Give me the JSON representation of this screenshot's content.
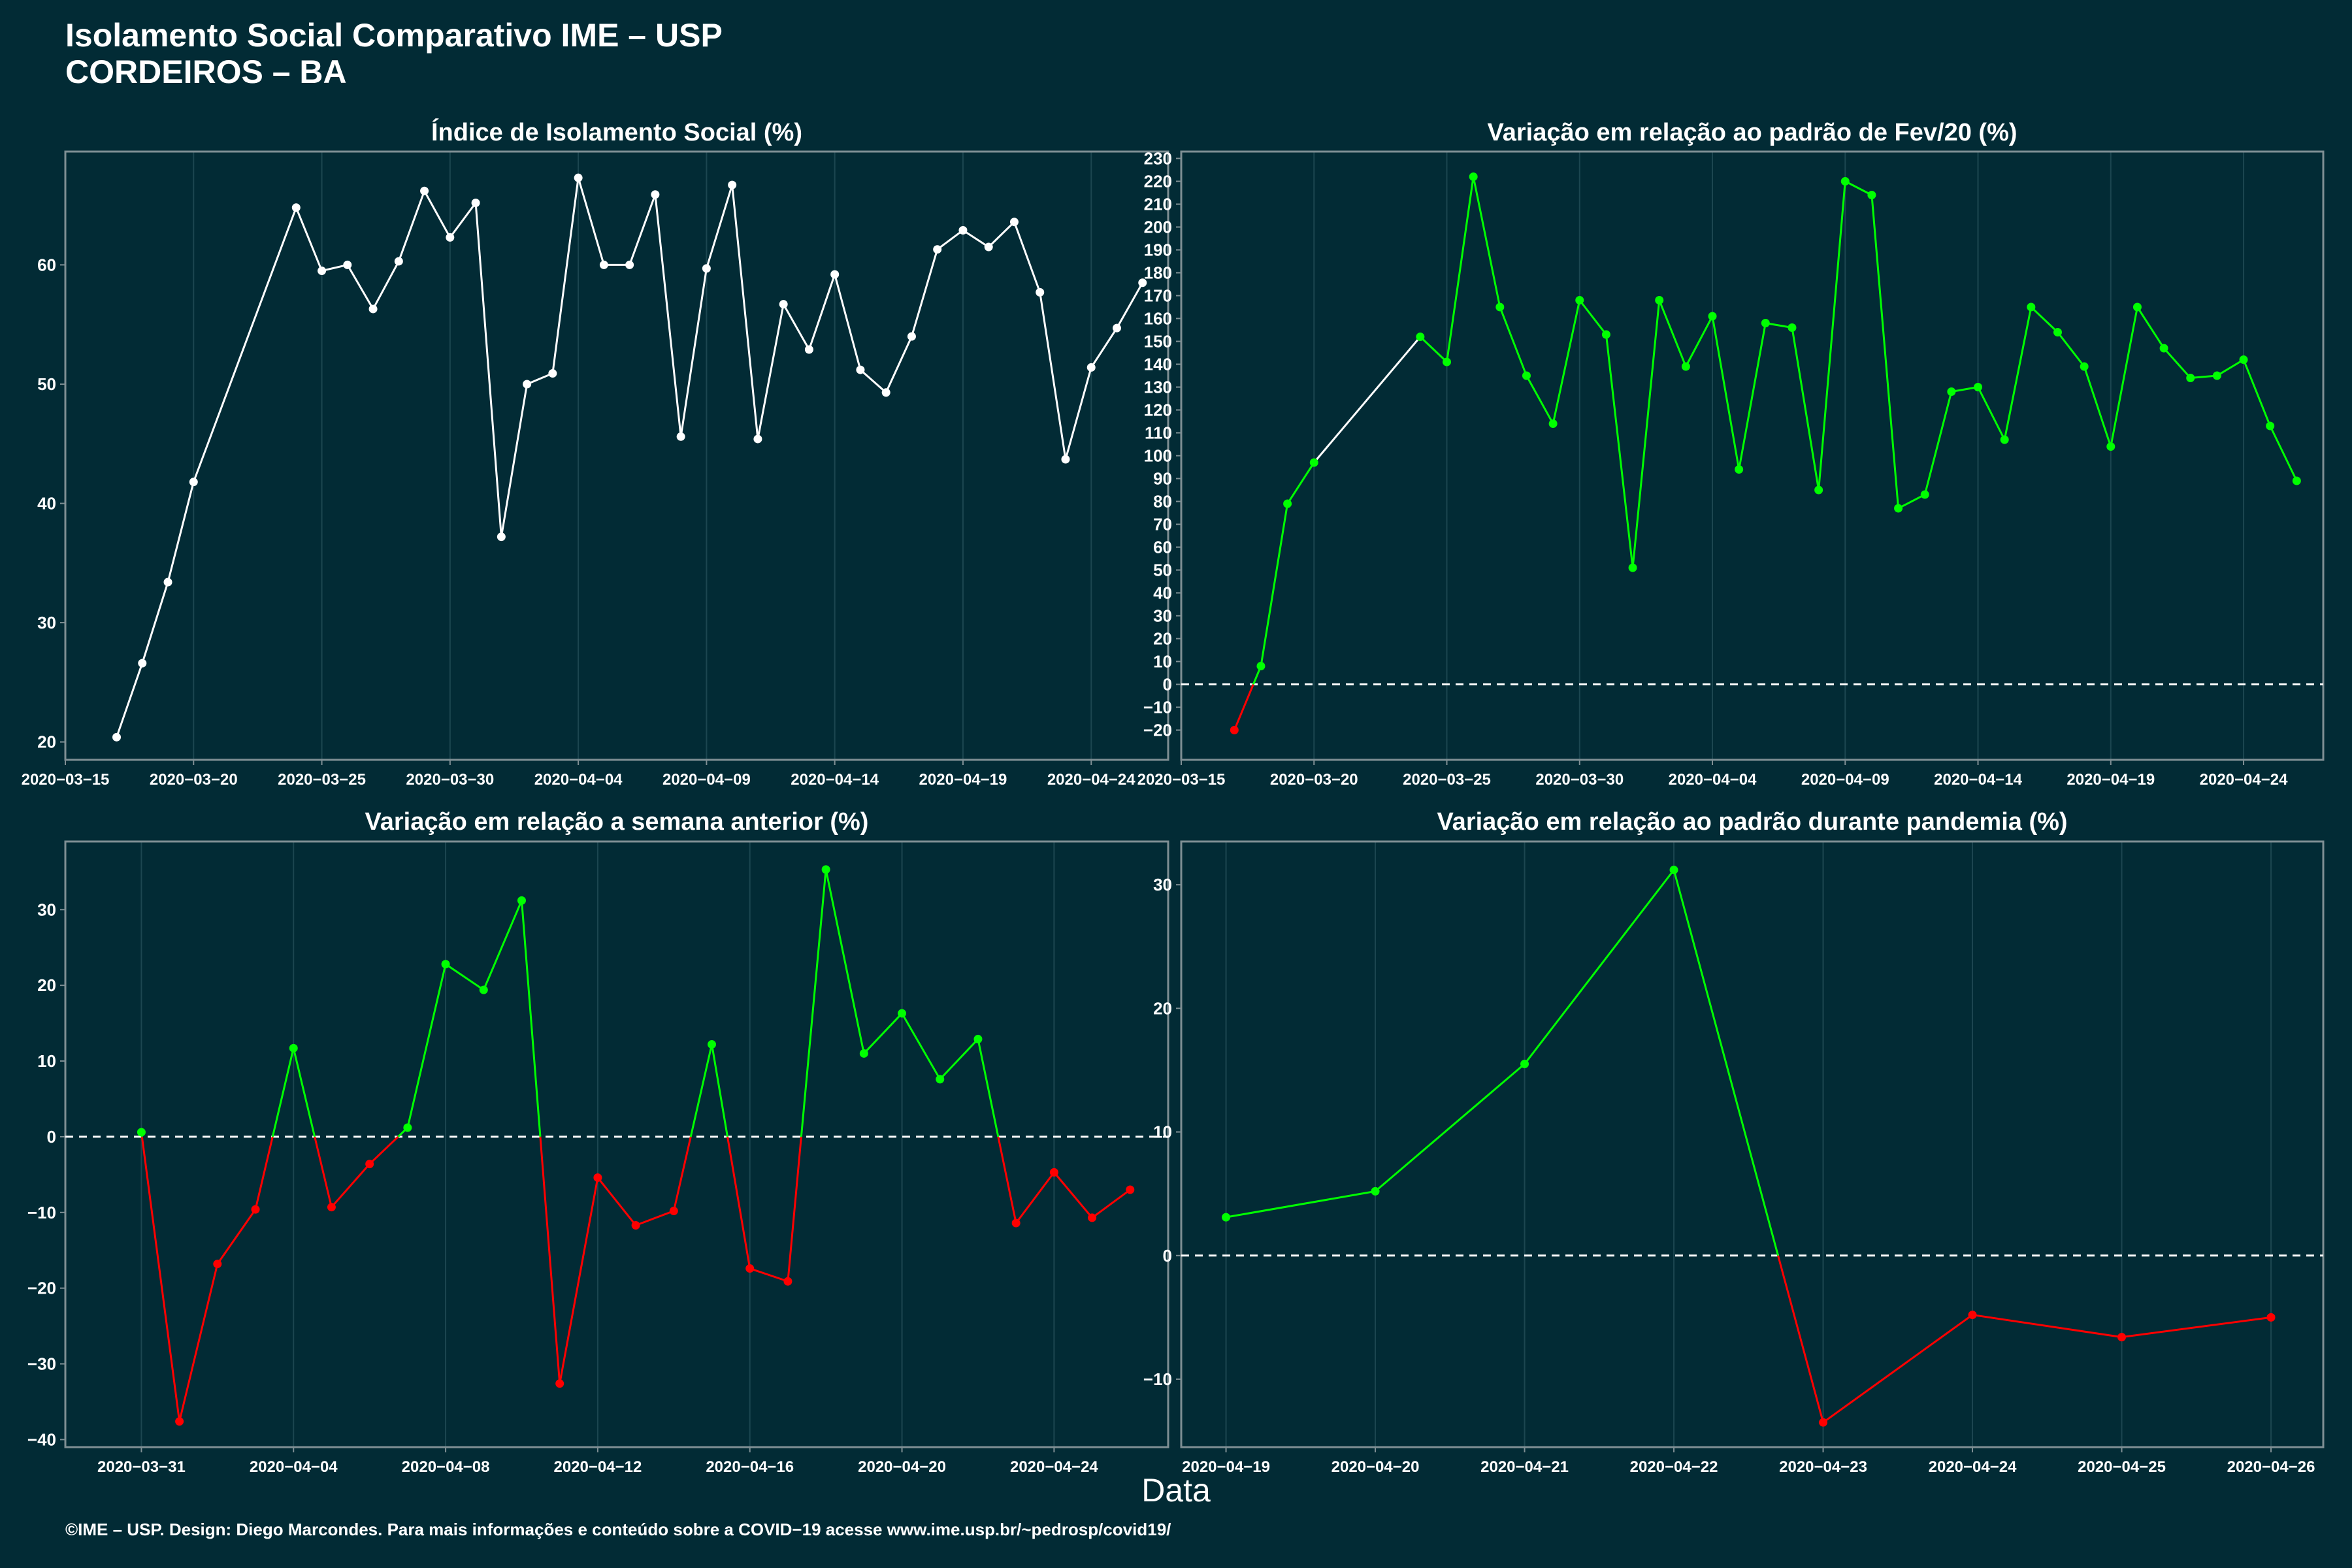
{
  "title_line1": "Isolamento Social Comparativo IME – USP",
  "title_line2": "CORDEIROS – BA",
  "x_axis_label": "Data",
  "footer": "©IME – USP. Design: Diego Marcondes. Para mais informações e conteúdo sobre a COVID−19 acesse www.ime.usp.br/~pedrosp/covid19/",
  "colors": {
    "background": "#022b35",
    "positive": "#00ff00",
    "negative": "#ff0000",
    "neutral": "#ffffff",
    "grid": "#1c4650"
  },
  "chart_data": [
    {
      "type": "line",
      "title": "Índice de Isolamento Social (%)",
      "xaxis": "date",
      "xlim": [
        "2020-03-15",
        "2020-04-27"
      ],
      "ylim": [
        18.5,
        69.5
      ],
      "yticks": [
        20,
        30,
        40,
        50,
        60
      ],
      "xticks": [
        "2020-03-15",
        "2020-03-20",
        "2020-03-25",
        "2020-03-30",
        "2020-04-04",
        "2020-04-09",
        "2020-04-14",
        "2020-04-19",
        "2020-04-24"
      ],
      "points": [
        [
          "2020-03-17",
          20.4
        ],
        [
          "2020-03-18",
          26.6
        ],
        [
          "2020-03-19",
          33.4
        ],
        [
          "2020-03-20",
          41.8
        ],
        [
          "2020-03-24",
          64.8
        ],
        [
          "2020-03-25",
          59.5
        ],
        [
          "2020-03-26",
          60.0
        ],
        [
          "2020-03-27",
          56.3
        ],
        [
          "2020-03-28",
          60.3
        ],
        [
          "2020-03-29",
          66.2
        ],
        [
          "2020-03-30",
          62.3
        ],
        [
          "2020-03-31",
          65.2
        ],
        [
          "2020-04-01",
          37.2
        ],
        [
          "2020-04-02",
          50.0
        ],
        [
          "2020-04-03",
          50.9
        ],
        [
          "2020-04-04",
          67.3
        ],
        [
          "2020-04-05",
          60.0
        ],
        [
          "2020-04-06",
          60.0
        ],
        [
          "2020-04-07",
          65.9
        ],
        [
          "2020-04-08",
          45.6
        ],
        [
          "2020-04-09",
          59.7
        ],
        [
          "2020-04-10",
          66.7
        ],
        [
          "2020-04-11",
          45.4
        ],
        [
          "2020-04-12",
          56.7
        ],
        [
          "2020-04-13",
          52.9
        ],
        [
          "2020-04-14",
          59.2
        ],
        [
          "2020-04-15",
          51.2
        ],
        [
          "2020-04-16",
          49.3
        ],
        [
          "2020-04-17",
          54.0
        ],
        [
          "2020-04-18",
          61.3
        ],
        [
          "2020-04-19",
          62.9
        ],
        [
          "2020-04-20",
          61.5
        ],
        [
          "2020-04-21",
          63.6
        ],
        [
          "2020-04-22",
          57.7
        ],
        [
          "2020-04-23",
          43.7
        ],
        [
          "2020-04-24",
          51.4
        ],
        [
          "2020-04-25",
          54.7
        ],
        [
          "2020-04-26",
          58.5
        ]
      ],
      "grid": true,
      "color_mode": "neutral"
    },
    {
      "type": "line",
      "title": "Variação em relação ao padrão de Fev/20 (%)",
      "xaxis": "date",
      "xlim": [
        "2020-03-15",
        "2020-04-27"
      ],
      "ylim": [
        -33,
        233
      ],
      "yticks": [
        -20,
        -10,
        0,
        10,
        20,
        30,
        40,
        50,
        60,
        70,
        80,
        90,
        100,
        110,
        120,
        130,
        140,
        150,
        160,
        170,
        180,
        190,
        200,
        210,
        220,
        230
      ],
      "xticks": [
        "2020-03-15",
        "2020-03-20",
        "2020-03-25",
        "2020-03-30",
        "2020-04-04",
        "2020-04-09",
        "2020-04-14",
        "2020-04-19",
        "2020-04-24"
      ],
      "zero_line": true,
      "points": [
        [
          "2020-03-17",
          -20
        ],
        [
          "2020-03-18",
          8
        ],
        [
          "2020-03-19",
          79
        ],
        [
          "2020-03-20",
          97
        ],
        [
          "2020-03-24",
          152
        ],
        [
          "2020-03-25",
          141
        ],
        [
          "2020-03-26",
          222
        ],
        [
          "2020-03-27",
          165
        ],
        [
          "2020-03-28",
          135
        ],
        [
          "2020-03-29",
          114
        ],
        [
          "2020-03-30",
          168
        ],
        [
          "2020-03-31",
          153
        ],
        [
          "2020-04-01",
          51
        ],
        [
          "2020-04-02",
          168
        ],
        [
          "2020-04-03",
          139
        ],
        [
          "2020-04-04",
          161
        ],
        [
          "2020-04-05",
          94
        ],
        [
          "2020-04-06",
          158
        ],
        [
          "2020-04-07",
          156
        ],
        [
          "2020-04-08",
          85
        ],
        [
          "2020-04-09",
          220
        ],
        [
          "2020-04-10",
          214
        ],
        [
          "2020-04-11",
          77
        ],
        [
          "2020-04-12",
          83
        ],
        [
          "2020-04-13",
          128
        ],
        [
          "2020-04-14",
          130
        ],
        [
          "2020-04-15",
          107
        ],
        [
          "2020-04-16",
          165
        ],
        [
          "2020-04-17",
          154
        ],
        [
          "2020-04-18",
          139
        ],
        [
          "2020-04-19",
          104
        ],
        [
          "2020-04-20",
          165
        ],
        [
          "2020-04-21",
          147
        ],
        [
          "2020-04-22",
          134
        ],
        [
          "2020-04-23",
          135
        ],
        [
          "2020-04-24",
          142
        ],
        [
          "2020-04-25",
          113
        ],
        [
          "2020-04-26",
          89
        ]
      ],
      "grid": true,
      "color_mode": "sign",
      "neutral_segments": [
        3
      ]
    },
    {
      "type": "line",
      "title": "Variação em relação a semana anterior (%)",
      "xaxis": "date",
      "xlim": [
        "2020-03-29",
        "2020-04-27"
      ],
      "ylim": [
        -41,
        39
      ],
      "yticks": [
        -40,
        -30,
        -20,
        -10,
        0,
        10,
        20,
        30
      ],
      "xticks": [
        "2020-03-31",
        "2020-04-04",
        "2020-04-08",
        "2020-04-12",
        "2020-04-16",
        "2020-04-20",
        "2020-04-24"
      ],
      "zero_line": true,
      "points": [
        [
          "2020-03-31",
          0.6
        ],
        [
          "2020-04-01",
          -37.6
        ],
        [
          "2020-04-02",
          -16.8
        ],
        [
          "2020-04-03",
          -9.6
        ],
        [
          "2020-04-04",
          11.7
        ],
        [
          "2020-04-05",
          -9.3
        ],
        [
          "2020-04-06",
          -3.6
        ],
        [
          "2020-04-07",
          1.2
        ],
        [
          "2020-04-08",
          22.8
        ],
        [
          "2020-04-09",
          19.4
        ],
        [
          "2020-04-10",
          31.2
        ],
        [
          "2020-04-11",
          -32.6
        ],
        [
          "2020-04-12",
          -5.4
        ],
        [
          "2020-04-13",
          -11.7
        ],
        [
          "2020-04-14",
          -9.8
        ],
        [
          "2020-04-15",
          12.2
        ],
        [
          "2020-04-16",
          -17.4
        ],
        [
          "2020-04-17",
          -19.1
        ],
        [
          "2020-04-18",
          35.3
        ],
        [
          "2020-04-19",
          11.0
        ],
        [
          "2020-04-20",
          16.3
        ],
        [
          "2020-04-21",
          7.6
        ],
        [
          "2020-04-22",
          12.9
        ],
        [
          "2020-04-23",
          -11.4
        ],
        [
          "2020-04-24",
          -4.7
        ],
        [
          "2020-04-25",
          -10.7
        ],
        [
          "2020-04-26",
          -7.0
        ]
      ],
      "grid": true,
      "color_mode": "sign"
    },
    {
      "type": "line",
      "title": "Variação em relação ao padrão durante pandemia (%)",
      "xaxis": "date",
      "xlim": [
        "2020-04-18.7",
        "2020-04-26.35"
      ],
      "ylim": [
        -15.5,
        33.5
      ],
      "yticks": [
        -10,
        0,
        10,
        20,
        30
      ],
      "xticks": [
        "2020-04-19",
        "2020-04-20",
        "2020-04-21",
        "2020-04-22",
        "2020-04-23",
        "2020-04-24",
        "2020-04-25",
        "2020-04-26"
      ],
      "zero_line": true,
      "points": [
        [
          "2020-04-19",
          3.1
        ],
        [
          "2020-04-20",
          5.2
        ],
        [
          "2020-04-21",
          15.5
        ],
        [
          "2020-04-22",
          31.2
        ],
        [
          "2020-04-23",
          -13.5
        ],
        [
          "2020-04-24",
          -4.8
        ],
        [
          "2020-04-25",
          -6.6
        ],
        [
          "2020-04-26",
          -5.0
        ]
      ],
      "grid": true,
      "color_mode": "sign"
    }
  ]
}
